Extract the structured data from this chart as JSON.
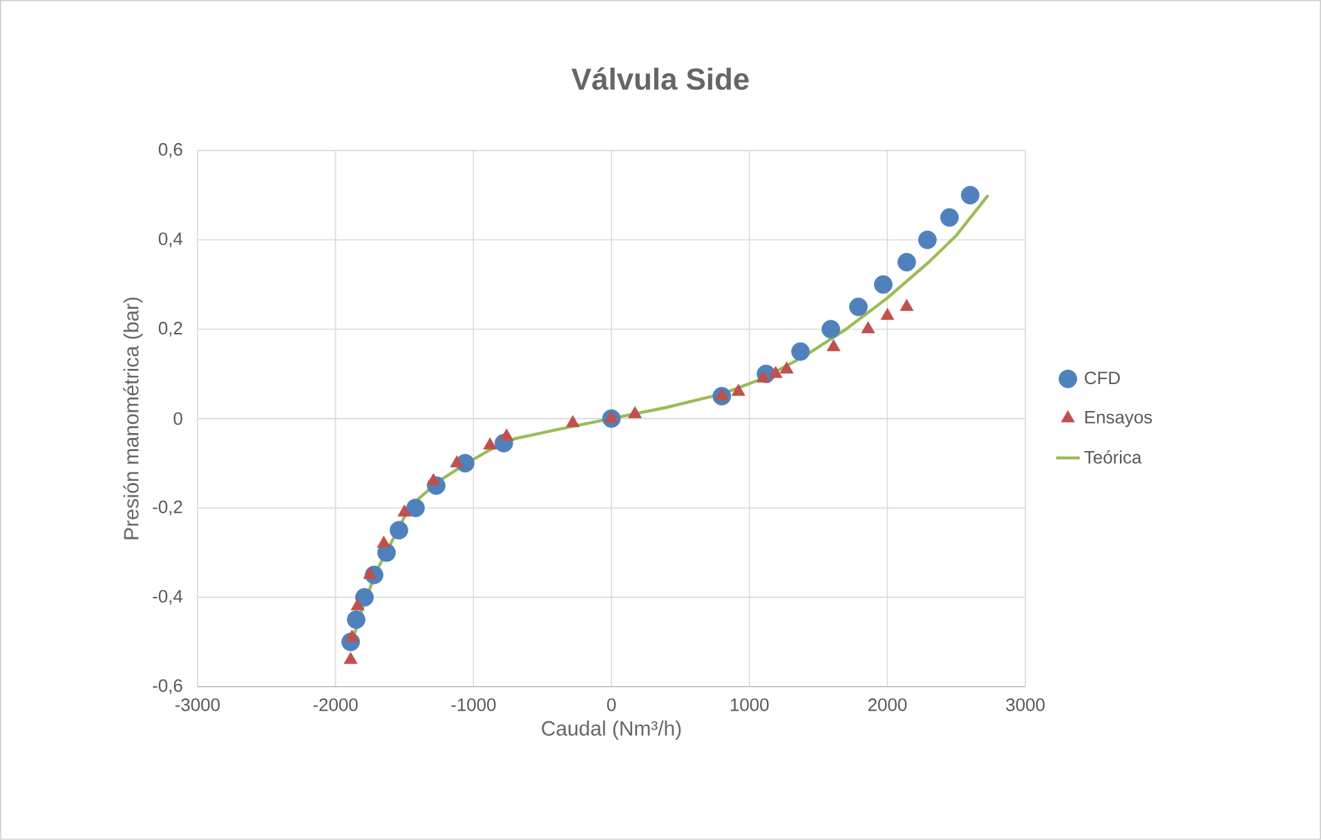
{
  "chart_data": {
    "type": "scatter",
    "title": "Válvula Side",
    "xlabel": "Caudal (Nm³/h)",
    "ylabel": "Presión manométrica (bar)",
    "xlim": [
      -3000,
      3000
    ],
    "xticks": [
      -3000,
      -2000,
      -1000,
      0,
      1000,
      2000,
      3000
    ],
    "ylim": [
      -0.6,
      0.6
    ],
    "yticks": [
      {
        "value": -0.6,
        "label": "-0,6"
      },
      {
        "value": -0.4,
        "label": "-0,4"
      },
      {
        "value": -0.2,
        "label": "-0,2"
      },
      {
        "value": 0,
        "label": "0"
      },
      {
        "value": 0.2,
        "label": "0,2"
      },
      {
        "value": 0.4,
        "label": "0,4"
      },
      {
        "value": 0.6,
        "label": "0,6"
      }
    ],
    "grid": true,
    "legend": "right",
    "series": [
      {
        "name": "CFD",
        "type": "scatter",
        "marker": "circle",
        "color": "#4f81bd",
        "x": [
          -1890,
          -1850,
          -1790,
          -1720,
          -1630,
          -1540,
          -1420,
          -1270,
          -1060,
          -780,
          0,
          800,
          1120,
          1370,
          1590,
          1790,
          1970,
          2140,
          2290,
          2450,
          2600
        ],
        "values": [
          -0.5,
          -0.45,
          -0.4,
          -0.35,
          -0.3,
          -0.25,
          -0.2,
          -0.15,
          -0.1,
          -0.055,
          0,
          0.05,
          0.1,
          0.15,
          0.2,
          0.25,
          0.3,
          0.35,
          0.4,
          0.45,
          0.5
        ]
      },
      {
        "name": "Ensayos",
        "type": "scatter",
        "marker": "triangle",
        "color": "#c0504d",
        "x": [
          -1890,
          -1880,
          -1840,
          -1750,
          -1650,
          -1500,
          -1290,
          -1120,
          -880,
          -760,
          -280,
          0,
          170,
          800,
          920,
          1100,
          1190,
          1270,
          1610,
          1860,
          2000,
          2140
        ],
        "values": [
          -0.54,
          -0.49,
          -0.42,
          -0.35,
          -0.28,
          -0.21,
          -0.14,
          -0.1,
          -0.06,
          -0.04,
          -0.01,
          0,
          0.01,
          0.05,
          0.06,
          0.09,
          0.1,
          0.11,
          0.16,
          0.2,
          0.23,
          0.25
        ]
      },
      {
        "name": "Teórica",
        "type": "line",
        "marker": "none",
        "line_style": "solid",
        "color": "#9bbb59",
        "x": [
          -1880,
          -1800,
          -1700,
          -1600,
          -1500,
          -1400,
          -1250,
          -1050,
          -850,
          -700,
          -400,
          0,
          400,
          800,
          1100,
          1400,
          1700,
          2000,
          2300,
          2500,
          2730
        ],
        "values": [
          -0.5,
          -0.42,
          -0.34,
          -0.28,
          -0.22,
          -0.18,
          -0.14,
          -0.1,
          -0.065,
          -0.045,
          -0.025,
          0,
          0.025,
          0.055,
          0.09,
          0.14,
          0.2,
          0.27,
          0.35,
          0.41,
          0.5
        ]
      }
    ]
  }
}
